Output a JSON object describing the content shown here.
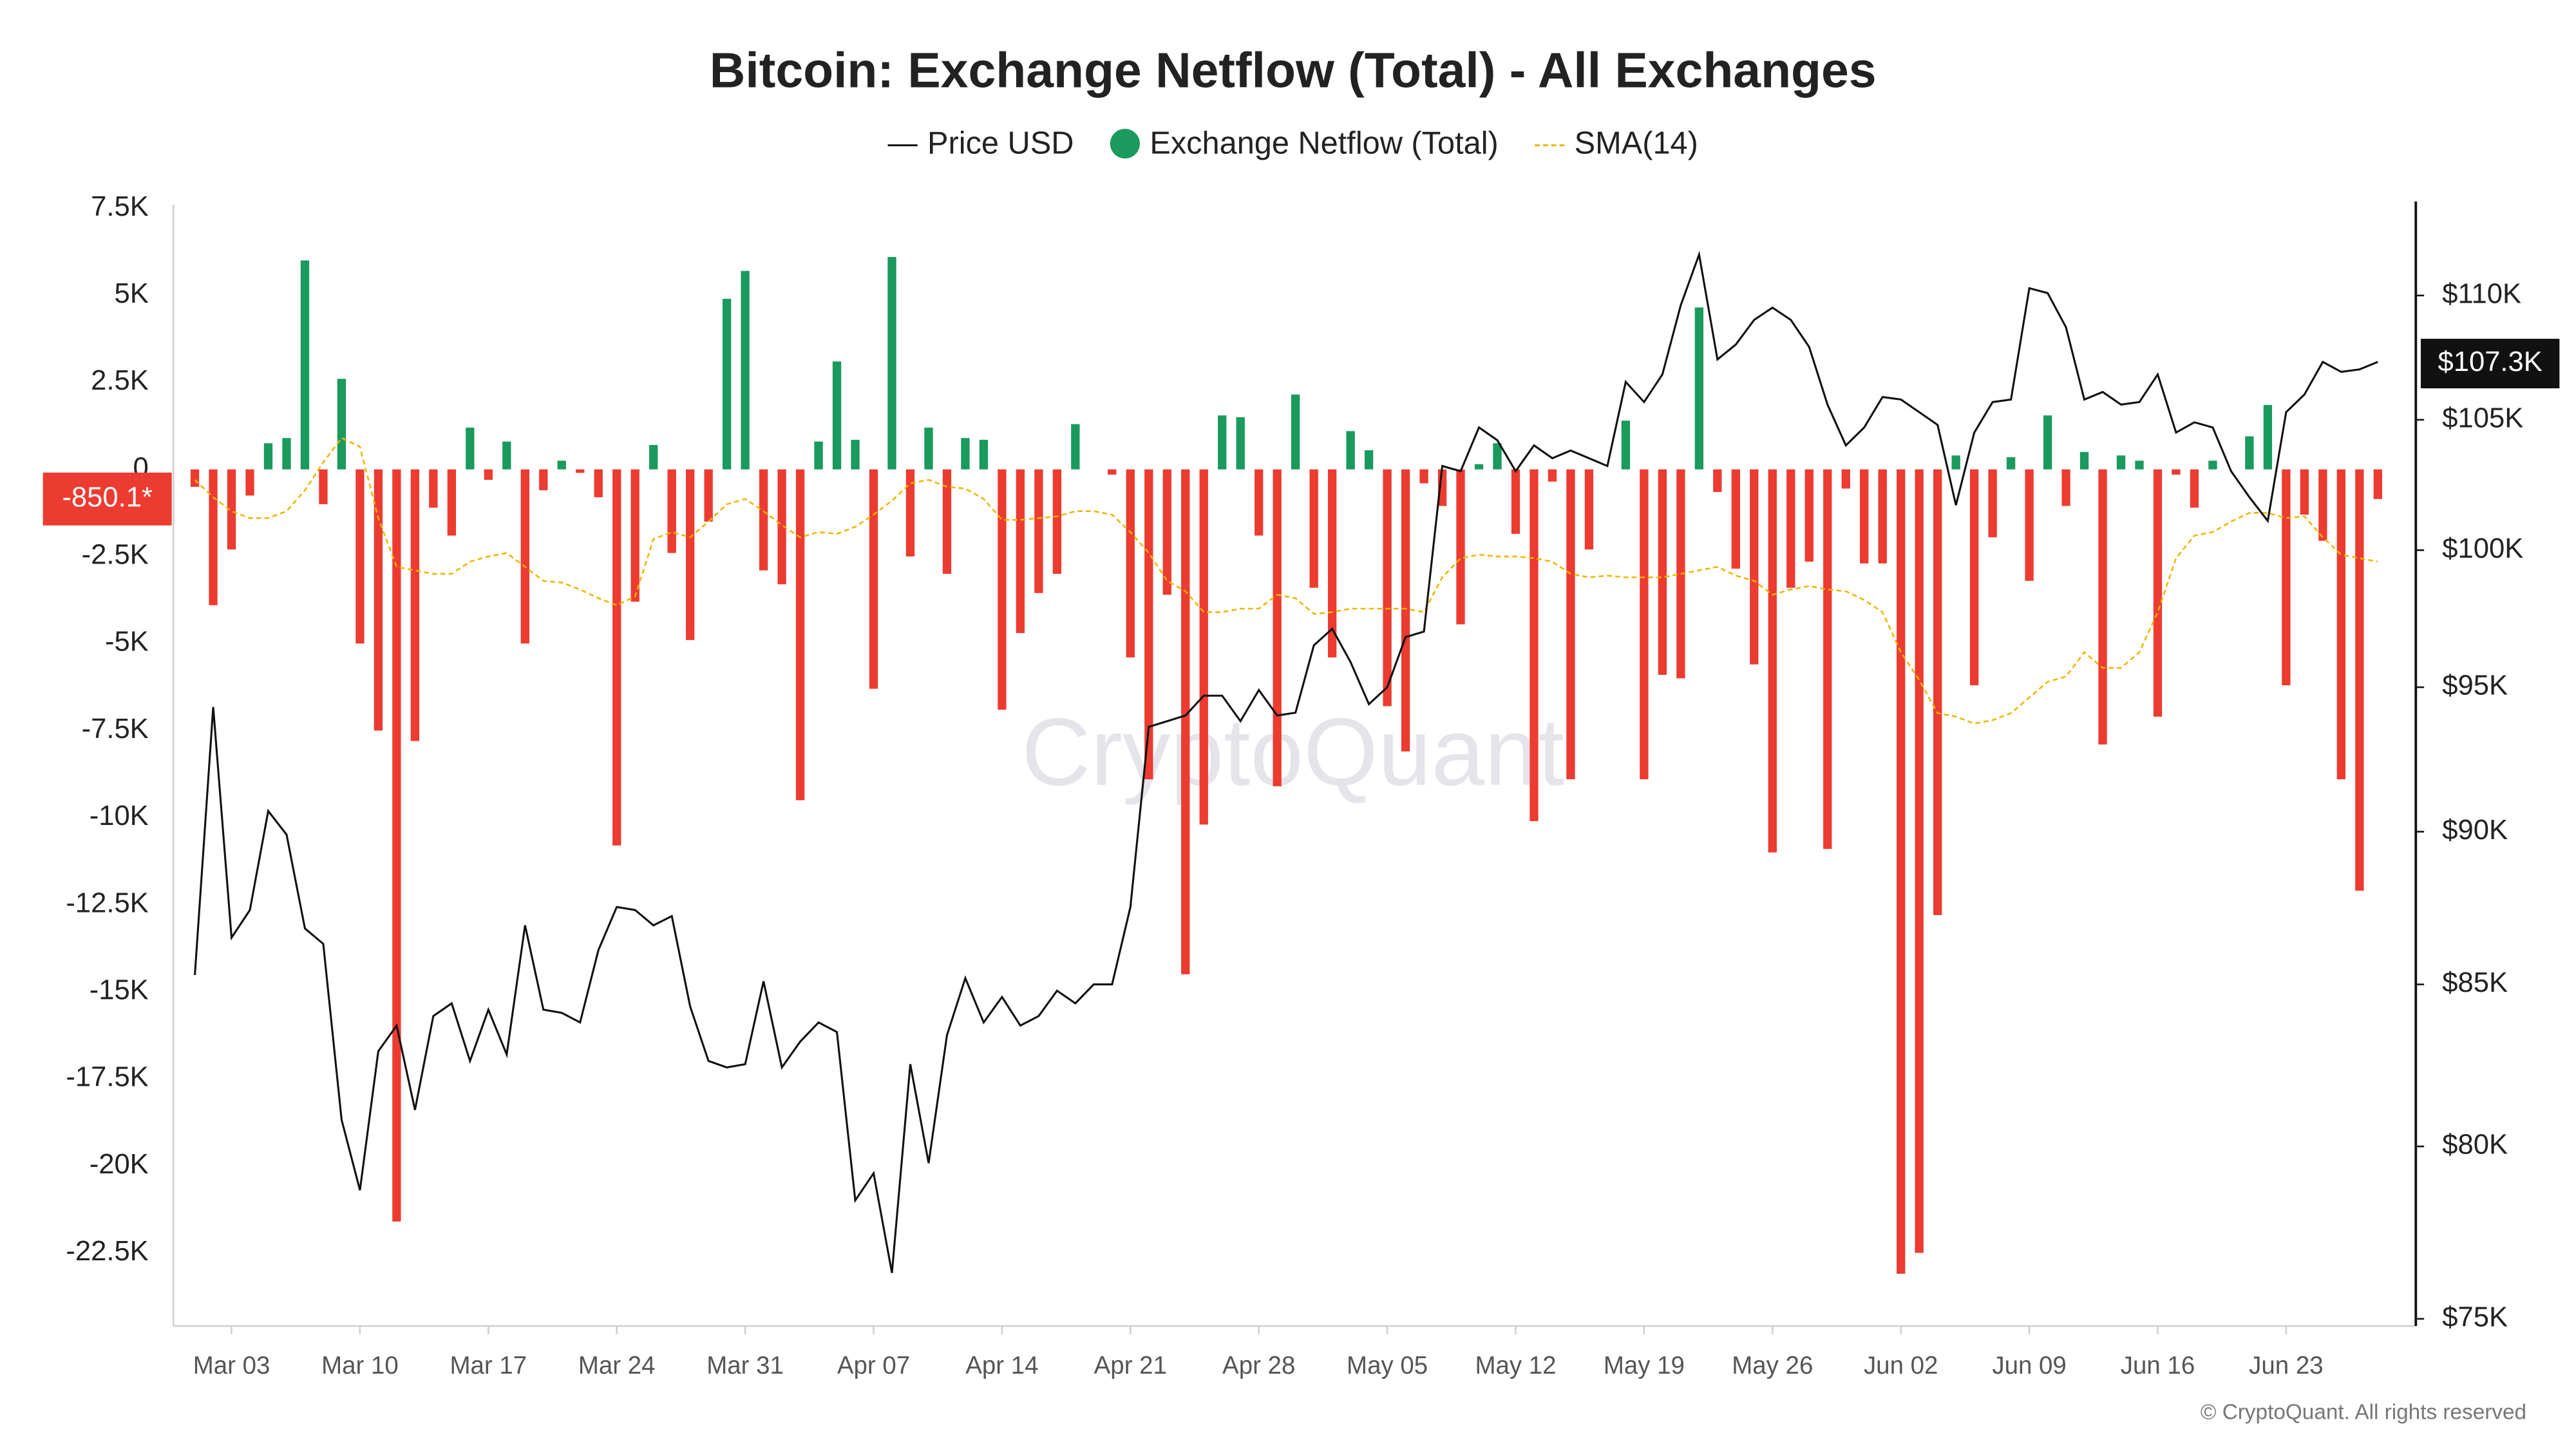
{
  "chart_data": {
    "type": "bar",
    "title": "Bitcoin: Exchange Netflow (Total) - All Exchanges",
    "legend": "top",
    "watermark": "CryptoQuant",
    "copyright": "© CryptoQuant. All rights reserved",
    "categories": [
      "Mar 01",
      "Mar 02",
      "Mar 03",
      "Mar 04",
      "Mar 05",
      "Mar 06",
      "Mar 07",
      "Mar 08",
      "Mar 09",
      "Mar 10",
      "Mar 11",
      "Mar 12",
      "Mar 13",
      "Mar 14",
      "Mar 15",
      "Mar 16",
      "Mar 17",
      "Mar 18",
      "Mar 19",
      "Mar 20",
      "Mar 21",
      "Mar 22",
      "Mar 23",
      "Mar 24",
      "Mar 25",
      "Mar 26",
      "Mar 27",
      "Mar 28",
      "Mar 29",
      "Mar 30",
      "Mar 31",
      "Apr 01",
      "Apr 02",
      "Apr 03",
      "Apr 04",
      "Apr 05",
      "Apr 06",
      "Apr 07",
      "Apr 08",
      "Apr 09",
      "Apr 10",
      "Apr 11",
      "Apr 12",
      "Apr 13",
      "Apr 14",
      "Apr 15",
      "Apr 16",
      "Apr 17",
      "Apr 18",
      "Apr 19",
      "Apr 20",
      "Apr 21",
      "Apr 22",
      "Apr 23",
      "Apr 24",
      "Apr 25",
      "Apr 26",
      "Apr 27",
      "Apr 28",
      "Apr 29",
      "Apr 30",
      "May 01",
      "May 02",
      "May 03",
      "May 04",
      "May 05",
      "May 06",
      "May 07",
      "May 08",
      "May 09",
      "May 10",
      "May 11",
      "May 12",
      "May 13",
      "May 14",
      "May 15",
      "May 16",
      "May 17",
      "May 18",
      "May 19",
      "May 20",
      "May 21",
      "May 22",
      "May 23",
      "May 24",
      "May 25",
      "May 26",
      "May 27",
      "May 28",
      "May 29",
      "May 30",
      "May 31",
      "Jun 01",
      "Jun 02",
      "Jun 03",
      "Jun 04",
      "Jun 05",
      "Jun 06",
      "Jun 07",
      "Jun 08",
      "Jun 09",
      "Jun 10",
      "Jun 11",
      "Jun 12",
      "Jun 13",
      "Jun 14",
      "Jun 15",
      "Jun 16",
      "Jun 17",
      "Jun 18",
      "Jun 19",
      "Jun 20",
      "Jun 21",
      "Jun 22",
      "Jun 23",
      "Jun 24",
      "Jun 25",
      "Jun 26",
      "Jun 27",
      "Jun 28"
    ],
    "xticks": [
      "Mar 03",
      "Mar 10",
      "Mar 17",
      "Mar 24",
      "Mar 31",
      "Apr 07",
      "Apr 14",
      "Apr 21",
      "Apr 28",
      "May 05",
      "May 12",
      "May 19",
      "May 26",
      "Jun 02",
      "Jun 09",
      "Jun 16",
      "Jun 23"
    ],
    "ylim": [
      -24600,
      7600
    ],
    "yticks": [
      {
        "value": 7500,
        "label": "7.5K"
      },
      {
        "value": 5000,
        "label": "5K"
      },
      {
        "value": 2500,
        "label": "2.5K"
      },
      0,
      {
        "value": -2500,
        "label": "-2.5K"
      },
      {
        "value": -5000,
        "label": "-5K"
      },
      {
        "value": -7500,
        "label": "-7.5K"
      },
      {
        "value": -10000,
        "label": "-10K"
      },
      {
        "value": -12500,
        "label": "-12.5K"
      },
      {
        "value": -15000,
        "label": "-15K"
      },
      {
        "value": -17500,
        "label": "-17.5K"
      },
      {
        "value": -20000,
        "label": "-20K"
      },
      {
        "value": -22500,
        "label": "-22.5K"
      }
    ],
    "y2lim": [
      74800,
      113800
    ],
    "y2scale": "log",
    "y2ticks": [
      {
        "value": 75000,
        "label": "$75K"
      },
      {
        "value": 80000,
        "label": "$80K"
      },
      {
        "value": 85000,
        "label": "$85K"
      },
      {
        "value": 90000,
        "label": "$90K"
      },
      {
        "value": 95000,
        "label": "$95K"
      },
      {
        "value": 100000,
        "label": "$100K"
      },
      {
        "value": 105000,
        "label": "$105K"
      },
      {
        "value": 110000,
        "label": "$110K"
      }
    ],
    "series": [
      {
        "name": "Price USD",
        "type": "line",
        "axis": "y2",
        "color": "#111111",
        "last_value_label": "$107.3K",
        "values": [
          85300,
          94300,
          86500,
          87400,
          90700,
          89900,
          86800,
          86300,
          80800,
          78700,
          82900,
          83700,
          81100,
          84000,
          84400,
          82600,
          84200,
          82800,
          86900,
          84200,
          84100,
          83800,
          86100,
          87500,
          87400,
          86900,
          87200,
          84300,
          82600,
          82400,
          82500,
          85100,
          82400,
          83200,
          83800,
          83500,
          78400,
          79200,
          76300,
          82500,
          79500,
          83400,
          85200,
          83800,
          84600,
          83700,
          84000,
          84800,
          84400,
          85000,
          85000,
          87500,
          93600,
          93800,
          94000,
          94700,
          94700,
          93800,
          94900,
          94000,
          94100,
          96500,
          97100,
          95900,
          94400,
          95000,
          96800,
          97000,
          103200,
          103000,
          104700,
          104200,
          103000,
          104000,
          103500,
          103800,
          103500,
          103200,
          106500,
          105700,
          106800,
          109600,
          111700,
          107400,
          108000,
          109000,
          109500,
          109000,
          107900,
          105600,
          104000,
          104700,
          105900,
          105800,
          105300,
          104800,
          101700,
          104500,
          105700,
          105800,
          110300,
          110100,
          108700,
          105800,
          106100,
          105600,
          105700,
          106800,
          104500,
          104900,
          104700,
          103000,
          102000,
          101100,
          105300,
          106000,
          107300,
          106900,
          107000,
          107300
        ]
      },
      {
        "name": "Exchange Netflow (Total)",
        "type": "bar",
        "color": "#1a9a5c",
        "negative_color": "#ec3b30",
        "last_value_label": "-850.1*",
        "values": [
          -500,
          -3900,
          -2300,
          -750,
          750,
          900,
          6000,
          -1000,
          2600,
          -5000,
          -7500,
          -21600,
          -7800,
          -1100,
          -1900,
          1200,
          -300,
          800,
          -5000,
          -600,
          250,
          -100,
          -800,
          -10800,
          -3800,
          700,
          -2400,
          -4900,
          -1500,
          4900,
          5700,
          -2900,
          -3300,
          -9500,
          800,
          3100,
          850,
          -6300,
          6100,
          -2500,
          1200,
          -3000,
          900,
          850,
          -6900,
          -4700,
          -3550,
          -3000,
          1300,
          0,
          -150,
          -5400,
          -8900,
          -3600,
          -14500,
          -10200,
          1550,
          1500,
          -1900,
          -9100,
          2150,
          -3400,
          -5400,
          1100,
          550,
          -6800,
          -8100,
          -400,
          -1050,
          -4450,
          150,
          750,
          -1850,
          -10100,
          -350,
          -8900,
          -2300,
          0,
          1400,
          -8900,
          -5900,
          -6000,
          4650,
          -650,
          -2850,
          -5600,
          -11000,
          -3400,
          -2650,
          -10900,
          -550,
          -2700,
          -2700,
          -23100,
          -22500,
          -12800,
          400,
          -6200,
          -1950,
          350,
          -3200,
          1550,
          -1050,
          500,
          -7900,
          400,
          250,
          -7100,
          -150,
          -1100,
          250,
          0,
          950,
          1850,
          -6200,
          -1300,
          -2050,
          -8900,
          -12100,
          -850.1
        ]
      },
      {
        "name": "SMA(14)",
        "type": "line",
        "dashed": true,
        "color": "#f0b400",
        "values": [
          -300,
          -800,
          -1200,
          -1400,
          -1400,
          -1200,
          -600,
          200,
          900,
          650,
          -1400,
          -2800,
          -2900,
          -3000,
          -3000,
          -2650,
          -2500,
          -2400,
          -2800,
          -3200,
          -3250,
          -3450,
          -3700,
          -3900,
          -3650,
          -2000,
          -1800,
          -1950,
          -1500,
          -1000,
          -850,
          -1200,
          -1600,
          -1950,
          -1800,
          -1850,
          -1650,
          -1300,
          -900,
          -400,
          -300,
          -500,
          -550,
          -850,
          -1450,
          -1450,
          -1400,
          -1350,
          -1200,
          -1200,
          -1300,
          -1800,
          -2400,
          -3200,
          -3500,
          -4100,
          -4100,
          -4000,
          -4000,
          -3600,
          -3700,
          -4150,
          -4100,
          -4000,
          -4000,
          -4000,
          -4000,
          -4100,
          -3100,
          -2550,
          -2450,
          -2500,
          -2500,
          -2550,
          -2650,
          -3000,
          -3100,
          -3050,
          -3100,
          -3100,
          -3100,
          -3000,
          -2900,
          -2800,
          -3050,
          -3200,
          -3600,
          -3450,
          -3350,
          -3450,
          -3500,
          -3750,
          -4100,
          -5250,
          -6050,
          -7000,
          -7100,
          -7300,
          -7200,
          -7000,
          -6550,
          -6100,
          -5950,
          -5250,
          -5700,
          -5700,
          -5250,
          -4100,
          -2550,
          -1900,
          -1800,
          -1500,
          -1250,
          -1250,
          -1400,
          -1350,
          -1950,
          -2450,
          -2550,
          -2650
        ]
      }
    ]
  }
}
